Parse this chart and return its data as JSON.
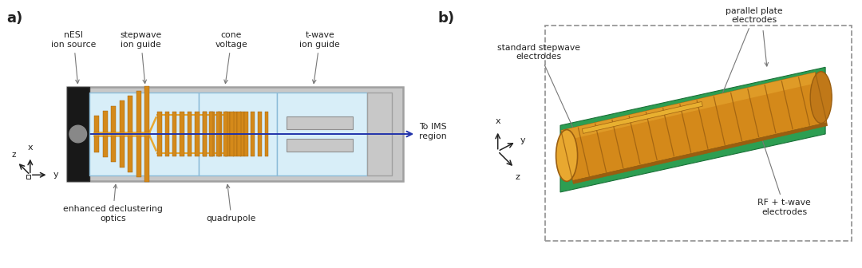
{
  "bg_color": "#ffffff",
  "label_a": "a)",
  "label_b": "b)",
  "orange_color": "#D4891A",
  "orange_mid": "#C07818",
  "orange_dark": "#9A5E10",
  "orange_light": "#E8A830",
  "green_color": "#2D9E52",
  "green_dark": "#1A7038",
  "light_blue": "#D8EEF8",
  "blue_border": "#8BBBD8",
  "gray_wall": "#A0A0A0",
  "gray_light": "#C8C8C8",
  "dark_gray": "#505050",
  "black": "#181818",
  "arrow_color": "#2233AA",
  "axis_color": "#222222",
  "text_color": "#222222",
  "dashed_gray": "#999999",
  "ann_arrow": "#777777",
  "texts_a": {
    "nESI_ion_source": "nESI\nion source",
    "stepwave_ion_guide": "stepwave\nion guide",
    "cone_voltage": "cone\nvoltage",
    "twave_ion_guide": "t-wave\nion guide",
    "enhanced_declustering": "enhanced declustering\noptics",
    "quadrupole": "quadrupole",
    "to_IMS": "To IMS\nregion"
  },
  "texts_b": {
    "parallel_plate": "parallel plate\nelectrodes",
    "standard_stepwave": "standard stepwave\nelectrodes",
    "rf_twave": "RF + t-wave\nelectrodes"
  }
}
